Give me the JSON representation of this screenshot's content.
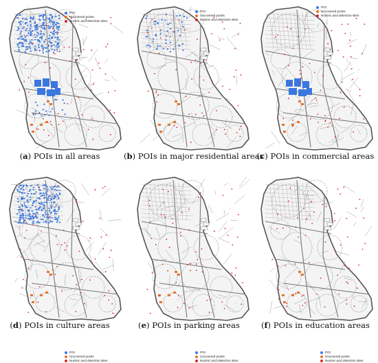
{
  "legend": {
    "items": [
      {
        "label": "POI",
        "color": "#3a78e0"
      },
      {
        "label": "Uncovered points",
        "color": "#e8742a"
      },
      {
        "label": "Nucleic acid detection sites",
        "color": "#d9252a"
      }
    ]
  },
  "panels": [
    {
      "letter": "a",
      "caption": "POIs in all areas",
      "poi_density": "high",
      "poi_zones": [
        "north",
        "commercial",
        "south"
      ]
    },
    {
      "letter": "b",
      "caption": "POIs in major residential areas",
      "poi_density": "low",
      "poi_zones": [
        "north-sparse"
      ]
    },
    {
      "letter": "c",
      "caption": "POIs in commercial areas",
      "poi_density": "medium",
      "poi_zones": [
        "commercial"
      ]
    },
    {
      "letter": "d",
      "caption": "POIs in culture areas",
      "poi_density": "high",
      "poi_zones": [
        "north"
      ]
    },
    {
      "letter": "e",
      "caption": "POIs in parking areas",
      "poi_density": "low",
      "poi_zones": []
    },
    {
      "letter": "f",
      "caption": "POIs in education areas",
      "poi_density": "low",
      "poi_zones": []
    }
  ],
  "colors": {
    "boundary": "#555555",
    "roads": "#9a9a9a",
    "buffer": "#888888"
  }
}
